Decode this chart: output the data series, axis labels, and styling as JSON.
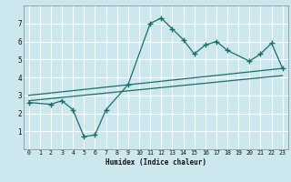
{
  "title": "",
  "xlabel": "Humidex (Indice chaleur)",
  "bg_color": "#cce8ee",
  "grid_color": "#ffffff",
  "line_color": "#1a6e6a",
  "xlim": [
    -0.5,
    23.5
  ],
  "ylim": [
    0,
    8
  ],
  "xticks": [
    0,
    1,
    2,
    3,
    4,
    5,
    6,
    7,
    8,
    9,
    10,
    11,
    12,
    13,
    14,
    15,
    16,
    17,
    18,
    19,
    20,
    21,
    22,
    23
  ],
  "yticks": [
    1,
    2,
    3,
    4,
    5,
    6,
    7
  ],
  "line1_x": [
    0,
    2,
    3,
    4,
    5,
    6,
    7,
    9,
    11,
    12,
    13,
    14,
    15,
    16,
    17,
    18,
    20,
    21,
    22,
    23
  ],
  "line1_y": [
    2.6,
    2.5,
    2.7,
    2.2,
    0.7,
    0.8,
    2.2,
    3.6,
    7.0,
    7.3,
    6.7,
    6.1,
    5.3,
    5.8,
    6.0,
    5.5,
    4.9,
    5.3,
    5.9,
    4.5
  ],
  "line2_x": [
    0,
    23
  ],
  "line2_y": [
    2.7,
    4.1
  ],
  "line3_x": [
    0,
    23
  ],
  "line3_y": [
    3.0,
    4.5
  ]
}
